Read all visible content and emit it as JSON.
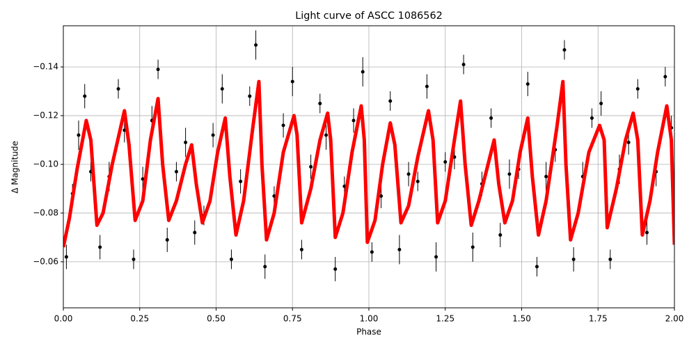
{
  "chart_data": {
    "type": "scatter",
    "title": "Light curve of ASCC 1086562",
    "x_label": "Phase",
    "y_label": "Δ Magnitude",
    "xlim": [
      0,
      2
    ],
    "ylim": [
      -0.0411,
      -0.1569
    ],
    "xticks": [
      {
        "value": 0,
        "label": "0.00"
      },
      {
        "value": 0.25,
        "label": "0.25"
      },
      {
        "value": 0.5,
        "label": "0.50"
      },
      {
        "value": 0.75,
        "label": "0.75"
      },
      {
        "value": 1,
        "label": "1.00"
      },
      {
        "value": 1.25,
        "label": "1.25"
      },
      {
        "value": 1.5,
        "label": "1.50"
      },
      {
        "value": 1.75,
        "label": "1.75"
      },
      {
        "value": 2,
        "label": "2.00"
      }
    ],
    "yticks": [
      {
        "value": -0.06,
        "label": "−0.06"
      },
      {
        "value": -0.08,
        "label": "−0.08"
      },
      {
        "value": -0.1,
        "label": "−0.10"
      },
      {
        "value": -0.12,
        "label": "−0.12"
      },
      {
        "value": -0.14,
        "label": "−0.14"
      }
    ],
    "grid": true,
    "series": [
      {
        "type": "scatter",
        "color": "#000000",
        "x": [
          0.01,
          0.03,
          0.05,
          0.07,
          0.09,
          0.12,
          0.15,
          0.18,
          0.2,
          0.23,
          0.26,
          0.29,
          0.31,
          0.34,
          0.37,
          0.4,
          0.43,
          0.46,
          0.49,
          0.52,
          0.55,
          0.58,
          0.61,
          0.63,
          0.66,
          0.69,
          0.72,
          0.75,
          0.78,
          0.81,
          0.84,
          0.86,
          0.89,
          0.92,
          0.95,
          0.98,
          1.01,
          1.04,
          1.07,
          1.1,
          1.13,
          1.16,
          1.19,
          1.22,
          1.25,
          1.28,
          1.31,
          1.34,
          1.37,
          1.4,
          1.43,
          1.46,
          1.49,
          1.52,
          1.55,
          1.58,
          1.61,
          1.64,
          1.67,
          1.7,
          1.73,
          1.76,
          1.79,
          1.82,
          1.85,
          1.88,
          1.91,
          1.94,
          1.97,
          1.99
        ],
        "values": [
          -0.062,
          -0.088,
          -0.112,
          -0.128,
          -0.097,
          -0.066,
          -0.095,
          -0.131,
          -0.114,
          -0.061,
          -0.094,
          -0.118,
          -0.139,
          -0.069,
          -0.097,
          -0.109,
          -0.072,
          -0.079,
          -0.112,
          -0.131,
          -0.061,
          -0.093,
          -0.128,
          -0.149,
          -0.058,
          -0.087,
          -0.116,
          -0.134,
          -0.065,
          -0.099,
          -0.125,
          -0.112,
          -0.057,
          -0.091,
          -0.118,
          -0.138,
          -0.064,
          -0.087,
          -0.126,
          -0.065,
          -0.096,
          -0.093,
          -0.132,
          -0.062,
          -0.101,
          -0.103,
          -0.141,
          -0.066,
          -0.092,
          -0.119,
          -0.071,
          -0.096,
          -0.098,
          -0.133,
          -0.058,
          -0.095,
          -0.106,
          -0.147,
          -0.061,
          -0.095,
          -0.119,
          -0.125,
          -0.061,
          -0.098,
          -0.109,
          -0.131,
          -0.072,
          -0.097,
          -0.136,
          -0.115
        ],
        "errors": [
          0.005,
          0.004,
          0.006,
          0.005,
          0.004,
          0.005,
          0.006,
          0.004,
          0.005,
          0.004,
          0.005,
          0.006,
          0.004,
          0.005,
          0.004,
          0.006,
          0.005,
          0.004,
          0.005,
          0.006,
          0.004,
          0.005,
          0.004,
          0.006,
          0.005,
          0.004,
          0.005,
          0.006,
          0.004,
          0.005,
          0.004,
          0.006,
          0.005,
          0.004,
          0.005,
          0.006,
          0.004,
          0.005,
          0.004,
          0.006,
          0.005,
          0.004,
          0.005,
          0.006,
          0.004,
          0.005,
          0.004,
          0.006,
          0.005,
          0.004,
          0.005,
          0.006,
          0.004,
          0.005,
          0.004,
          0.006,
          0.005,
          0.004,
          0.005,
          0.006,
          0.004,
          0.005,
          0.004,
          0.006,
          0.005,
          0.004,
          0.005,
          0.006,
          0.004,
          0.005
        ]
      },
      {
        "type": "line",
        "color": "#ff0000",
        "x": [
          0,
          0.02,
          0.045,
          0.075,
          0.09,
          0.11,
          0.13,
          0.16,
          0.2,
          0.215,
          0.235,
          0.26,
          0.285,
          0.31,
          0.325,
          0.345,
          0.37,
          0.4,
          0.42,
          0.435,
          0.455,
          0.48,
          0.505,
          0.53,
          0.545,
          0.565,
          0.59,
          0.62,
          0.64,
          0.65,
          0.665,
          0.69,
          0.72,
          0.755,
          0.765,
          0.78,
          0.81,
          0.84,
          0.865,
          0.875,
          0.89,
          0.915,
          0.945,
          0.975,
          0.985,
          0.995,
          1.02,
          1.045,
          1.07,
          1.085,
          1.105,
          1.13,
          1.16,
          1.195,
          1.21,
          1.225,
          1.25,
          1.28,
          1.3,
          1.315,
          1.335,
          1.36,
          1.39,
          1.41,
          1.425,
          1.445,
          1.47,
          1.495,
          1.52,
          1.535,
          1.555,
          1.58,
          1.615,
          1.635,
          1.645,
          1.66,
          1.685,
          1.72,
          1.755,
          1.77,
          1.78,
          1.81,
          1.84,
          1.865,
          1.88,
          1.895,
          1.92,
          1.945,
          1.975,
          1.99,
          2
        ],
        "values": [
          -0.066,
          -0.078,
          -0.098,
          -0.118,
          -0.11,
          -0.075,
          -0.08,
          -0.1,
          -0.122,
          -0.108,
          -0.077,
          -0.085,
          -0.11,
          -0.127,
          -0.1,
          -0.077,
          -0.085,
          -0.1,
          -0.108,
          -0.092,
          -0.076,
          -0.085,
          -0.105,
          -0.119,
          -0.095,
          -0.071,
          -0.085,
          -0.115,
          -0.134,
          -0.1,
          -0.069,
          -0.08,
          -0.105,
          -0.12,
          -0.112,
          -0.076,
          -0.09,
          -0.11,
          -0.121,
          -0.11,
          -0.07,
          -0.08,
          -0.105,
          -0.124,
          -0.11,
          -0.068,
          -0.077,
          -0.1,
          -0.117,
          -0.108,
          -0.076,
          -0.083,
          -0.103,
          -0.122,
          -0.11,
          -0.076,
          -0.085,
          -0.11,
          -0.126,
          -0.1,
          -0.075,
          -0.085,
          -0.1,
          -0.11,
          -0.092,
          -0.076,
          -0.085,
          -0.105,
          -0.119,
          -0.095,
          -0.071,
          -0.085,
          -0.115,
          -0.134,
          -0.1,
          -0.069,
          -0.08,
          -0.105,
          -0.116,
          -0.11,
          -0.074,
          -0.09,
          -0.11,
          -0.121,
          -0.11,
          -0.071,
          -0.085,
          -0.105,
          -0.124,
          -0.11,
          -0.067
        ]
      }
    ]
  }
}
